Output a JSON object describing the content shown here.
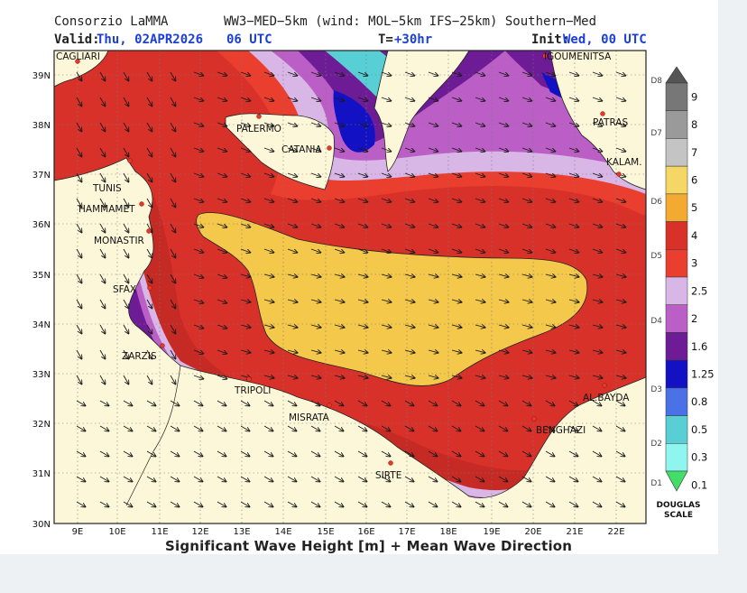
{
  "header": {
    "provider": "Consorzio LaMMA",
    "model": "WW3−MED−5km (wind: MOL−5km IFS−25km) Southern−Med",
    "valid_label": "Valid:",
    "valid_value": "Thu, 02APR2026",
    "valid_time": "06 UTC",
    "lead_label": "T=",
    "lead_value": "+30hr",
    "init_label": "Init:",
    "init_value": "Wed, 00 UTC"
  },
  "footer": {
    "title": "Significant Wave Height [m] + Mean Wave Direction"
  },
  "axes": {
    "lat_labels": [
      "39N",
      "38N",
      "37N",
      "36N",
      "35N",
      "34N",
      "33N",
      "32N",
      "31N",
      "30N"
    ],
    "lon_labels": [
      "9E",
      "10E",
      "11E",
      "12E",
      "13E",
      "14E",
      "15E",
      "16E",
      "17E",
      "18E",
      "19E",
      "20E",
      "21E",
      "22E"
    ]
  },
  "cities": [
    {
      "name": "CAGLIARI"
    },
    {
      "name": "IGOUMENITSA"
    },
    {
      "name": "PALERMO"
    },
    {
      "name": "CATANIA"
    },
    {
      "name": "PATRAS"
    },
    {
      "name": "KALAM."
    },
    {
      "name": "TUNIS"
    },
    {
      "name": "HAMMAMET"
    },
    {
      "name": "MONASTIR"
    },
    {
      "name": "SFAX"
    },
    {
      "name": "ZARZIS"
    },
    {
      "name": "TRIPOLI"
    },
    {
      "name": "MISRATA"
    },
    {
      "name": "AL.BAYDA"
    },
    {
      "name": "BENGHAZI"
    },
    {
      "name": "SIRTE"
    }
  ],
  "legend": {
    "scale_name_1": "DOUGLAS",
    "scale_name_2": "SCALE",
    "values": [
      "9",
      "8",
      "7",
      "6",
      "5",
      "4",
      "3",
      "2.5",
      "2",
      "1.6",
      "1.25",
      "0.8",
      "0.5",
      "0.3",
      "0.1"
    ],
    "douglas": [
      "D8",
      "D7",
      "D6",
      "D5",
      "D4",
      "D3",
      "D2",
      "D1"
    ],
    "colors": [
      "#555555",
      "#777777",
      "#9a9a9a",
      "#c4c4c4",
      "#f4d764",
      "#f2ab30",
      "#d8312a",
      "#ea3e2e",
      "#d8b6e6",
      "#bb5fc7",
      "#6e1c96",
      "#1212c4",
      "#4a72e6",
      "#58cfd4",
      "#8ff5ef",
      "#45dd6a"
    ]
  }
}
